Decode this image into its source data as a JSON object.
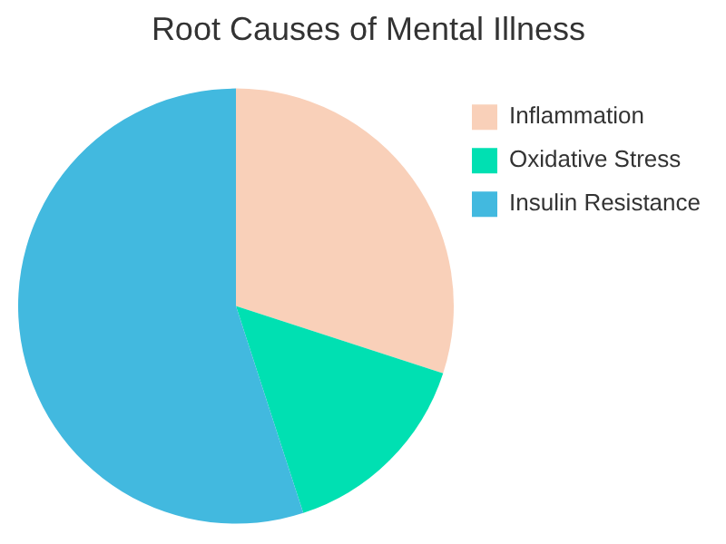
{
  "chart_data": {
    "type": "pie",
    "title": "Root Causes of Mental Illness",
    "categories": [
      "Inflammation",
      "Oxidative Stress",
      "Insulin Resistance"
    ],
    "values": [
      30,
      15,
      55
    ],
    "colors": [
      "#f9d0b9",
      "#00e0b2",
      "#42b9df"
    ],
    "legend": "right"
  }
}
